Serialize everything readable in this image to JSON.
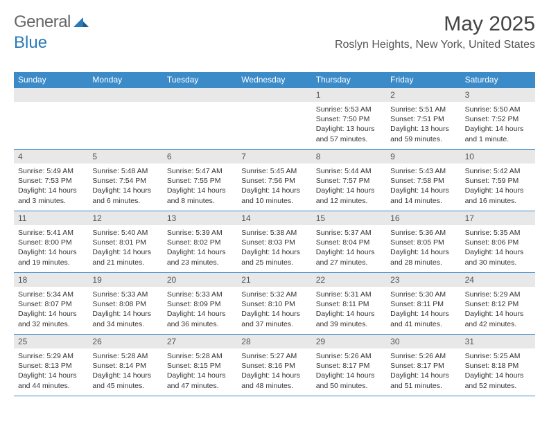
{
  "brand": {
    "part1": "General",
    "part2": "Blue"
  },
  "title": "May 2025",
  "location": "Roslyn Heights, New York, United States",
  "weekdays": [
    "Sunday",
    "Monday",
    "Tuesday",
    "Wednesday",
    "Thursday",
    "Friday",
    "Saturday"
  ],
  "colors": {
    "header_bar": "#3b8bc9",
    "daynum_bg": "#e8e8e8",
    "rule": "#3b8bc9",
    "logo_blue": "#2a7ab9"
  },
  "weeks": [
    [
      {
        "n": "",
        "sr": "",
        "ss": "",
        "dl": ""
      },
      {
        "n": "",
        "sr": "",
        "ss": "",
        "dl": ""
      },
      {
        "n": "",
        "sr": "",
        "ss": "",
        "dl": ""
      },
      {
        "n": "",
        "sr": "",
        "ss": "",
        "dl": ""
      },
      {
        "n": "1",
        "sr": "5:53 AM",
        "ss": "7:50 PM",
        "dl": "13 hours and 57 minutes."
      },
      {
        "n": "2",
        "sr": "5:51 AM",
        "ss": "7:51 PM",
        "dl": "13 hours and 59 minutes."
      },
      {
        "n": "3",
        "sr": "5:50 AM",
        "ss": "7:52 PM",
        "dl": "14 hours and 1 minute."
      }
    ],
    [
      {
        "n": "4",
        "sr": "5:49 AM",
        "ss": "7:53 PM",
        "dl": "14 hours and 3 minutes."
      },
      {
        "n": "5",
        "sr": "5:48 AM",
        "ss": "7:54 PM",
        "dl": "14 hours and 6 minutes."
      },
      {
        "n": "6",
        "sr": "5:47 AM",
        "ss": "7:55 PM",
        "dl": "14 hours and 8 minutes."
      },
      {
        "n": "7",
        "sr": "5:45 AM",
        "ss": "7:56 PM",
        "dl": "14 hours and 10 minutes."
      },
      {
        "n": "8",
        "sr": "5:44 AM",
        "ss": "7:57 PM",
        "dl": "14 hours and 12 minutes."
      },
      {
        "n": "9",
        "sr": "5:43 AM",
        "ss": "7:58 PM",
        "dl": "14 hours and 14 minutes."
      },
      {
        "n": "10",
        "sr": "5:42 AM",
        "ss": "7:59 PM",
        "dl": "14 hours and 16 minutes."
      }
    ],
    [
      {
        "n": "11",
        "sr": "5:41 AM",
        "ss": "8:00 PM",
        "dl": "14 hours and 19 minutes."
      },
      {
        "n": "12",
        "sr": "5:40 AM",
        "ss": "8:01 PM",
        "dl": "14 hours and 21 minutes."
      },
      {
        "n": "13",
        "sr": "5:39 AM",
        "ss": "8:02 PM",
        "dl": "14 hours and 23 minutes."
      },
      {
        "n": "14",
        "sr": "5:38 AM",
        "ss": "8:03 PM",
        "dl": "14 hours and 25 minutes."
      },
      {
        "n": "15",
        "sr": "5:37 AM",
        "ss": "8:04 PM",
        "dl": "14 hours and 27 minutes."
      },
      {
        "n": "16",
        "sr": "5:36 AM",
        "ss": "8:05 PM",
        "dl": "14 hours and 28 minutes."
      },
      {
        "n": "17",
        "sr": "5:35 AM",
        "ss": "8:06 PM",
        "dl": "14 hours and 30 minutes."
      }
    ],
    [
      {
        "n": "18",
        "sr": "5:34 AM",
        "ss": "8:07 PM",
        "dl": "14 hours and 32 minutes."
      },
      {
        "n": "19",
        "sr": "5:33 AM",
        "ss": "8:08 PM",
        "dl": "14 hours and 34 minutes."
      },
      {
        "n": "20",
        "sr": "5:33 AM",
        "ss": "8:09 PM",
        "dl": "14 hours and 36 minutes."
      },
      {
        "n": "21",
        "sr": "5:32 AM",
        "ss": "8:10 PM",
        "dl": "14 hours and 37 minutes."
      },
      {
        "n": "22",
        "sr": "5:31 AM",
        "ss": "8:11 PM",
        "dl": "14 hours and 39 minutes."
      },
      {
        "n": "23",
        "sr": "5:30 AM",
        "ss": "8:11 PM",
        "dl": "14 hours and 41 minutes."
      },
      {
        "n": "24",
        "sr": "5:29 AM",
        "ss": "8:12 PM",
        "dl": "14 hours and 42 minutes."
      }
    ],
    [
      {
        "n": "25",
        "sr": "5:29 AM",
        "ss": "8:13 PM",
        "dl": "14 hours and 44 minutes."
      },
      {
        "n": "26",
        "sr": "5:28 AM",
        "ss": "8:14 PM",
        "dl": "14 hours and 45 minutes."
      },
      {
        "n": "27",
        "sr": "5:28 AM",
        "ss": "8:15 PM",
        "dl": "14 hours and 47 minutes."
      },
      {
        "n": "28",
        "sr": "5:27 AM",
        "ss": "8:16 PM",
        "dl": "14 hours and 48 minutes."
      },
      {
        "n": "29",
        "sr": "5:26 AM",
        "ss": "8:17 PM",
        "dl": "14 hours and 50 minutes."
      },
      {
        "n": "30",
        "sr": "5:26 AM",
        "ss": "8:17 PM",
        "dl": "14 hours and 51 minutes."
      },
      {
        "n": "31",
        "sr": "5:25 AM",
        "ss": "8:18 PM",
        "dl": "14 hours and 52 minutes."
      }
    ]
  ],
  "labels": {
    "sunrise": "Sunrise:",
    "sunset": "Sunset:",
    "daylight": "Daylight:"
  }
}
